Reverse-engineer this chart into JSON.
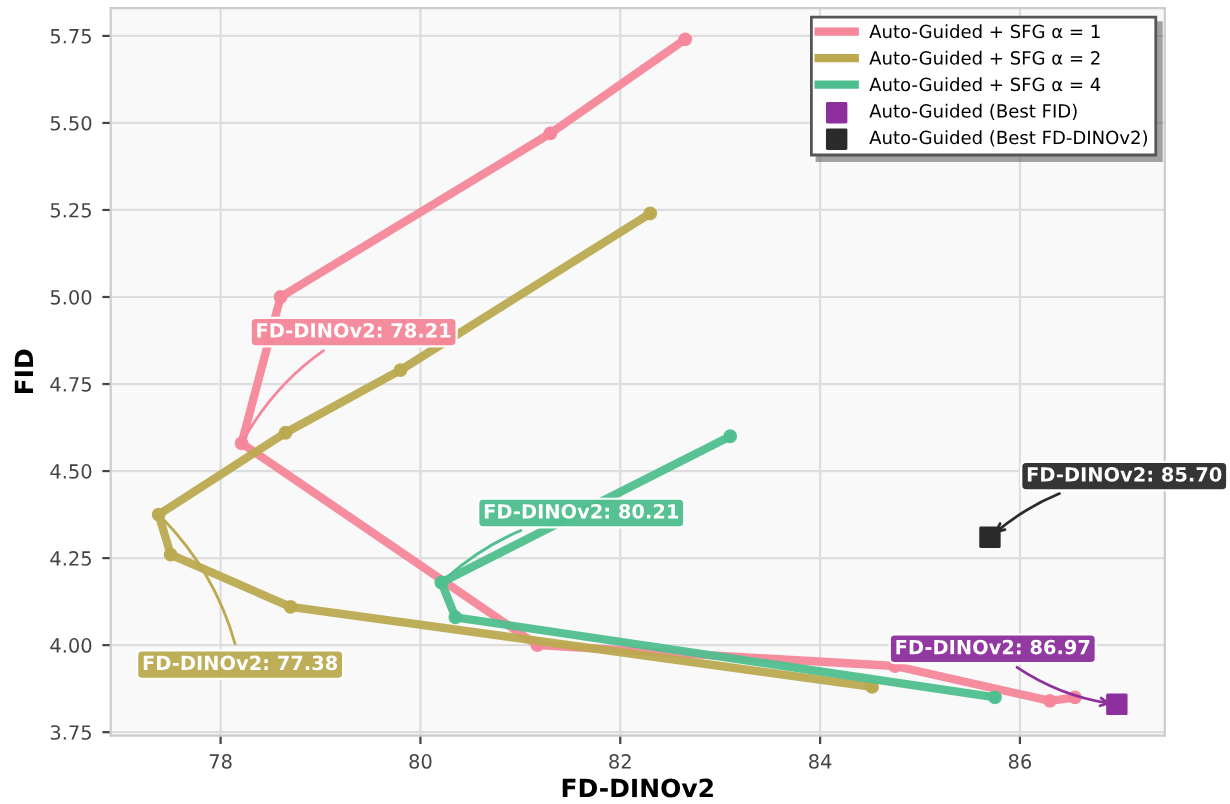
{
  "chart_data": {
    "type": "line",
    "xlabel": "FD-DINOv2",
    "ylabel": "FID",
    "xlim": [
      76.9,
      87.45
    ],
    "ylim": [
      3.74,
      5.83
    ],
    "xticks": [
      78,
      80,
      82,
      84,
      86
    ],
    "yticks": [
      {
        "value": 3.75,
        "label": "3.75"
      },
      {
        "value": 4.0,
        "label": "4.00"
      },
      {
        "value": 4.25,
        "label": "4.25"
      },
      {
        "value": 4.5,
        "label": "4.50"
      },
      {
        "value": 4.75,
        "label": "4.75"
      },
      {
        "value": 5.0,
        "label": "5.00"
      },
      {
        "value": 5.25,
        "label": "5.25"
      },
      {
        "value": 5.5,
        "label": "5.50"
      },
      {
        "value": 5.75,
        "label": "5.75"
      }
    ],
    "grid": true,
    "legend": "top right",
    "marker": "circle",
    "line_style": "solid",
    "series": [
      {
        "name": "Auto-Guided + SFG α = 1",
        "color": "#f5879a",
        "x": [
          82.65,
          81.3,
          78.6,
          78.21,
          81.17,
          84.75,
          86.3,
          86.55
        ],
        "values": [
          5.74,
          5.47,
          5.0,
          4.58,
          4.0,
          3.94,
          3.84,
          3.85
        ]
      },
      {
        "name": "Auto-Guided + SFG α = 2",
        "color": "#bbaa50",
        "x": [
          82.3,
          79.8,
          78.65,
          77.38,
          77.5,
          78.7,
          84.52
        ],
        "values": [
          5.24,
          4.79,
          4.61,
          4.375,
          4.26,
          4.11,
          3.88
        ]
      },
      {
        "name": "Auto-Guided + SFG α = 4",
        "color": "#4fbf8f",
        "x": [
          83.1,
          80.21,
          80.35,
          85.75
        ],
        "values": [
          4.6,
          4.18,
          4.08,
          3.85
        ]
      },
      {
        "name": "Auto-Guided (Best FID)",
        "type": "scatter",
        "marker": "square",
        "color": "#8e2f9e",
        "x": [
          86.97
        ],
        "values": [
          3.83
        ]
      },
      {
        "name": "Auto-Guided (Best FD-DINOv2)",
        "type": "scatter",
        "marker": "square",
        "color": "#2b2b2b",
        "x": [
          85.7
        ],
        "values": [
          4.31
        ]
      }
    ],
    "annotations": [
      {
        "text": "FD-DINOv2: 78.21",
        "x": 78.21,
        "y": 4.58
      },
      {
        "text": "FD-DINOv2: 77.38",
        "x": 77.38,
        "y": 4.375
      },
      {
        "text": "FD-DINOv2: 80.21",
        "x": 80.21,
        "y": 4.18
      },
      {
        "text": "FD-DINOv2: 85.70",
        "x": 85.7,
        "y": 4.31
      },
      {
        "text": "FD-DINOv2: 86.97",
        "x": 86.97,
        "y": 3.83
      }
    ]
  }
}
